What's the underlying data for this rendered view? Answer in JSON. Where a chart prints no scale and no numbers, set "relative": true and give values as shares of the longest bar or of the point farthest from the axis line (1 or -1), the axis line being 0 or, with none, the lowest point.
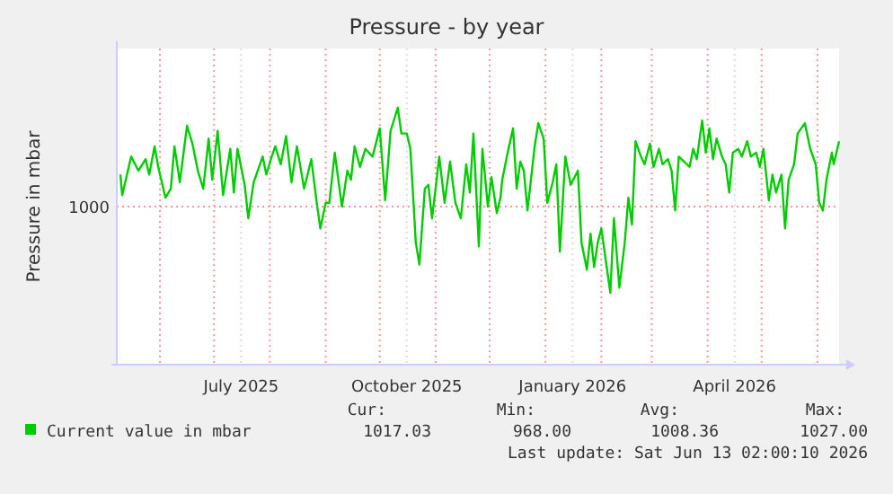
{
  "chart_data": {
    "type": "line",
    "title": "Pressure - by year",
    "ylabel": "Pressure in mbar",
    "relative": true,
    "xlim": [
      "2025-05-08",
      "2026-06-13"
    ],
    "xticks": [
      {
        "value": "2025-06-01",
        "label": null
      },
      {
        "value": "2025-07-01",
        "label": null
      },
      {
        "value": "2025-07-16",
        "label": "July 2025"
      },
      {
        "value": "2025-08-01",
        "label": null
      },
      {
        "value": "2025-09-01",
        "label": null
      },
      {
        "value": "2025-10-01",
        "label": null
      },
      {
        "value": "2025-10-16",
        "label": "October 2025"
      },
      {
        "value": "2025-11-01",
        "label": null
      },
      {
        "value": "2025-12-01",
        "label": null
      },
      {
        "value": "2026-01-01",
        "label": null
      },
      {
        "value": "2026-01-16",
        "label": "January 2026"
      },
      {
        "value": "2026-02-01",
        "label": null
      },
      {
        "value": "2026-03-01",
        "label": null
      },
      {
        "value": "2026-04-01",
        "label": null
      },
      {
        "value": "2026-04-16",
        "label": "April 2026"
      },
      {
        "value": "2026-05-01",
        "label": null
      },
      {
        "value": "2026-06-01",
        "label": null
      }
    ],
    "grid": "x",
    "legend": "bottom",
    "ref_lines": [
      {
        "axis": "y",
        "value": 0.615,
        "color": "#ff9999",
        "line_style": "dotted"
      }
    ],
    "x": [
      "2025-05-10",
      "2025-05-11",
      "2025-05-16",
      "2025-05-20",
      "2025-05-24",
      "2025-05-26",
      "2025-05-29",
      "2025-05-31",
      "2025-06-04",
      "2025-06-07",
      "2025-06-09",
      "2025-06-12",
      "2025-06-16",
      "2025-06-19",
      "2025-06-22",
      "2025-06-25",
      "2025-06-28",
      "2025-06-30",
      "2025-07-03",
      "2025-07-06",
      "2025-07-10",
      "2025-07-12",
      "2025-07-14",
      "2025-07-18",
      "2025-07-20",
      "2025-07-23",
      "2025-07-28",
      "2025-07-30",
      "2025-08-02",
      "2025-08-04",
      "2025-08-07",
      "2025-08-10",
      "2025-08-13",
      "2025-08-16",
      "2025-08-20",
      "2025-08-24",
      "2025-08-27",
      "2025-08-29",
      "2025-09-01",
      "2025-09-03",
      "2025-09-06",
      "2025-09-08",
      "2025-09-10",
      "2025-09-13",
      "2025-09-15",
      "2025-09-17",
      "2025-09-20",
      "2025-09-23",
      "2025-09-27",
      "2025-10-01",
      "2025-10-04",
      "2025-10-07",
      "2025-10-11",
      "2025-10-13",
      "2025-10-16",
      "2025-10-18",
      "2025-10-21",
      "2025-10-23",
      "2025-10-26",
      "2025-10-28",
      "2025-10-30",
      "2025-11-01",
      "2025-11-03",
      "2025-11-06",
      "2025-11-09",
      "2025-11-12",
      "2025-11-15",
      "2025-11-18",
      "2025-11-20",
      "2025-11-22",
      "2025-11-25",
      "2025-11-27",
      "2025-11-30",
      "2025-12-02",
      "2025-12-05",
      "2025-12-07",
      "2025-12-08",
      "2025-12-11",
      "2025-12-14",
      "2025-12-16",
      "2025-12-18",
      "2025-12-20",
      "2025-12-22",
      "2025-12-26",
      "2025-12-28",
      "2025-12-31",
      "2026-01-02",
      "2026-01-05",
      "2026-01-07",
      "2026-01-09",
      "2026-01-12",
      "2026-01-15",
      "2026-01-19",
      "2026-01-21",
      "2026-01-24",
      "2026-01-26",
      "2026-01-28",
      "2026-01-30",
      "2026-02-01",
      "2026-02-04",
      "2026-02-06",
      "2026-02-08",
      "2026-02-11",
      "2026-02-14",
      "2026-02-16",
      "2026-02-18",
      "2026-02-20",
      "2026-02-23",
      "2026-02-25",
      "2026-02-28",
      "2026-03-02",
      "2026-03-05",
      "2026-03-07",
      "2026-03-10",
      "2026-03-12",
      "2026-03-14",
      "2026-03-16",
      "2026-03-19",
      "2026-03-22",
      "2026-03-24",
      "2026-03-26",
      "2026-03-29",
      "2026-03-31",
      "2026-04-02",
      "2026-04-04",
      "2026-04-06",
      "2026-04-09",
      "2026-04-11",
      "2026-04-13",
      "2026-04-15",
      "2026-04-18",
      "2026-04-20",
      "2026-04-23",
      "2026-04-25",
      "2026-04-28",
      "2026-04-30",
      "2026-05-02",
      "2026-05-05",
      "2026-05-07",
      "2026-05-09",
      "2026-05-12",
      "2026-05-14",
      "2026-05-16",
      "2026-05-19",
      "2026-05-21",
      "2026-05-23",
      "2026-05-25",
      "2026-05-28",
      "2026-05-31",
      "2026-06-02",
      "2026-06-04",
      "2026-06-06",
      "2026-06-09",
      "2026-06-10",
      "2026-06-13"
    ],
    "series": [
      {
        "name": "Current value in mbar",
        "color": "#00cc00",
        "values": [
          0.74,
          0.66,
          0.81,
          0.755,
          0.8,
          0.74,
          0.85,
          0.77,
          0.65,
          0.685,
          0.85,
          0.71,
          0.93,
          0.86,
          0.755,
          0.685,
          0.88,
          0.72,
          0.91,
          0.66,
          0.84,
          0.67,
          0.84,
          0.7,
          0.57,
          0.71,
          0.81,
          0.74,
          0.81,
          0.85,
          0.78,
          0.89,
          0.71,
          0.85,
          0.685,
          0.8,
          0.63,
          0.53,
          0.63,
          0.63,
          0.825,
          0.72,
          0.615,
          0.755,
          0.72,
          0.85,
          0.77,
          0.84,
          0.81,
          0.92,
          0.64,
          0.91,
          1.0,
          0.9,
          0.9,
          0.84,
          0.475,
          0.39,
          0.685,
          0.7,
          0.57,
          0.685,
          0.81,
          0.63,
          0.79,
          0.63,
          0.57,
          0.78,
          0.67,
          0.9,
          0.46,
          0.84,
          0.615,
          0.73,
          0.59,
          0.65,
          0.72,
          0.825,
          0.92,
          0.685,
          0.79,
          0.755,
          0.6,
          0.85,
          0.94,
          0.88,
          0.63,
          0.71,
          0.78,
          0.44,
          0.81,
          0.7,
          0.755,
          0.475,
          0.37,
          0.51,
          0.38,
          0.475,
          0.53,
          0.38,
          0.28,
          0.57,
          0.3,
          0.475,
          0.65,
          0.545,
          0.87,
          0.81,
          0.78,
          0.86,
          0.77,
          0.84,
          0.78,
          0.8,
          0.755,
          0.6,
          0.81,
          0.79,
          0.77,
          0.84,
          0.8,
          0.95,
          0.825,
          0.92,
          0.8,
          0.88,
          0.81,
          0.78,
          0.67,
          0.825,
          0.84,
          0.81,
          0.87,
          0.81,
          0.825,
          0.77,
          0.84,
          0.64,
          0.74,
          0.67,
          0.74,
          0.53,
          0.72,
          0.78,
          0.9,
          0.92,
          0.94,
          0.84,
          0.78,
          0.63,
          0.6,
          0.72,
          0.825,
          0.78,
          0.87
        ]
      }
    ],
    "annotations": [
      "Cur:",
      "Min:",
      "Avg:",
      "Max:",
      "1017.03",
      "968.00",
      "1008.36",
      "1027.00",
      "Last update: Sat Jun 13 02:00:10 2026",
      "1000"
    ]
  }
}
